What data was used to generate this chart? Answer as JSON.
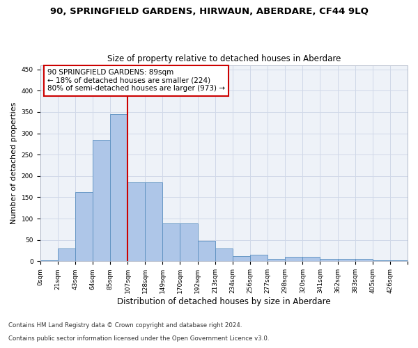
{
  "title": "90, SPRINGFIELD GARDENS, HIRWAUN, ABERDARE, CF44 9LQ",
  "subtitle": "Size of property relative to detached houses in Aberdare",
  "xlabel": "Distribution of detached houses by size in Aberdare",
  "ylabel": "Number of detached properties",
  "footer_line1": "Contains HM Land Registry data © Crown copyright and database right 2024.",
  "footer_line2": "Contains public sector information licensed under the Open Government Licence v3.0.",
  "bin_labels": [
    "0sqm",
    "21sqm",
    "43sqm",
    "64sqm",
    "85sqm",
    "107sqm",
    "128sqm",
    "149sqm",
    "170sqm",
    "192sqm",
    "213sqm",
    "234sqm",
    "256sqm",
    "277sqm",
    "298sqm",
    "320sqm",
    "341sqm",
    "362sqm",
    "383sqm",
    "405sqm",
    "426sqm"
  ],
  "bar_values": [
    2,
    30,
    162,
    284,
    345,
    185,
    185,
    88,
    88,
    48,
    30,
    12,
    16,
    6,
    10,
    10,
    5,
    5,
    5,
    2,
    2
  ],
  "bar_color": "#aec6e8",
  "bar_edge_color": "#5a8fc0",
  "vline_x_index": 5,
  "annotation_text": "90 SPRINGFIELD GARDENS: 89sqm\n← 18% of detached houses are smaller (224)\n80% of semi-detached houses are larger (973) →",
  "annotation_box_color": "#ffffff",
  "annotation_box_edge_color": "#cc0000",
  "vline_color": "#cc0000",
  "ylim": [
    0,
    460
  ],
  "yticks": [
    0,
    50,
    100,
    150,
    200,
    250,
    300,
    350,
    400,
    450
  ],
  "grid_color": "#d0d8e8",
  "background_color": "#eef2f8",
  "title_fontsize": 9.5,
  "subtitle_fontsize": 8.5,
  "xlabel_fontsize": 8.5,
  "ylabel_fontsize": 8,
  "tick_fontsize": 6.5,
  "annotation_fontsize": 7.5
}
